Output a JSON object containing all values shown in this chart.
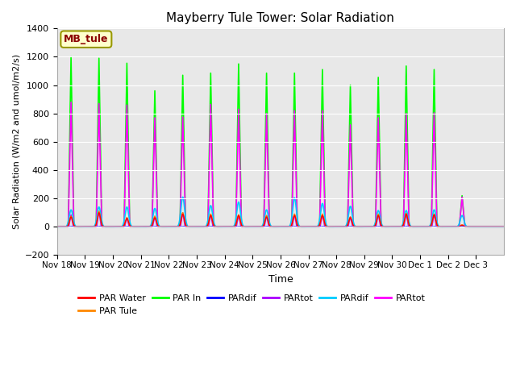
{
  "title": "Mayberry Tule Tower: Solar Radiation",
  "xlabel": "Time",
  "ylabel": "Solar Radiation (W/m2 and umol/m2/s)",
  "ylim": [
    -200,
    1400
  ],
  "yticks": [
    -200,
    0,
    200,
    400,
    600,
    800,
    1000,
    1200,
    1400
  ],
  "bg_color": "#e8e8e8",
  "legend_label": "MB_tule",
  "legend_entries": [
    {
      "label": "PAR Water",
      "color": "#ff0000"
    },
    {
      "label": "PAR Tule",
      "color": "#ff8800"
    },
    {
      "label": "PAR In",
      "color": "#00ff00"
    },
    {
      "label": "PARdif",
      "color": "#0000ff"
    },
    {
      "label": "PARtot",
      "color": "#aa00ff"
    },
    {
      "label": "PARdif",
      "color": "#00ccff"
    },
    {
      "label": "PARtot",
      "color": "#ff00ff"
    }
  ],
  "num_days": 16,
  "peaks_green": [
    1200,
    1190,
    1155,
    960,
    1070,
    1085,
    1150,
    1085,
    1085,
    1110,
    1000,
    1055,
    1135,
    1110,
    220,
    0
  ],
  "peaks_magenta": [
    880,
    870,
    860,
    770,
    775,
    865,
    830,
    800,
    820,
    820,
    720,
    770,
    800,
    805,
    210,
    0
  ],
  "peaks_red": [
    70,
    100,
    60,
    65,
    90,
    80,
    80,
    70,
    80,
    80,
    65,
    80,
    90,
    85,
    10,
    0
  ],
  "peaks_orange": [
    75,
    110,
    65,
    75,
    100,
    90,
    85,
    80,
    90,
    90,
    70,
    90,
    95,
    90,
    15,
    0
  ],
  "peaks_purple": [
    85,
    110,
    65,
    75,
    100,
    90,
    85,
    80,
    90,
    90,
    70,
    90,
    95,
    90,
    15,
    0
  ],
  "peaks_cyan": [
    120,
    140,
    140,
    130,
    210,
    150,
    175,
    120,
    205,
    165,
    145,
    115,
    115,
    120,
    80,
    0
  ],
  "peaks_blue": [
    3,
    3,
    3,
    3,
    3,
    3,
    3,
    3,
    3,
    3,
    3,
    3,
    3,
    3,
    3,
    0
  ],
  "x_tick_labels": [
    "Nov 18",
    "Nov 19",
    "Nov 20",
    "Nov 21",
    "Nov 22",
    "Nov 23",
    "Nov 24",
    "Nov 25",
    "Nov 26",
    "Nov 27",
    "Nov 28",
    "Nov 29",
    "Nov 30",
    "Dec 1",
    "Dec 2",
    "Dec 3"
  ]
}
